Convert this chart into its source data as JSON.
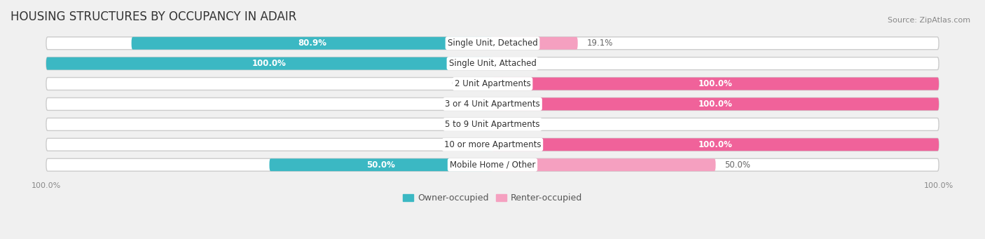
{
  "title": "HOUSING STRUCTURES BY OCCUPANCY IN ADAIR",
  "source": "Source: ZipAtlas.com",
  "categories": [
    "Single Unit, Detached",
    "Single Unit, Attached",
    "2 Unit Apartments",
    "3 or 4 Unit Apartments",
    "5 to 9 Unit Apartments",
    "10 or more Apartments",
    "Mobile Home / Other"
  ],
  "owner_pct": [
    80.9,
    100.0,
    0.0,
    0.0,
    0.0,
    0.0,
    50.0
  ],
  "renter_pct": [
    19.1,
    0.0,
    100.0,
    100.0,
    0.0,
    100.0,
    50.0
  ],
  "owner_color": "#3BB8C3",
  "renter_color_full": "#F0629A",
  "renter_color_partial": "#F5A0C0",
  "owner_label": "Owner-occupied",
  "renter_label": "Renter-occupied",
  "background_color": "#f0f0f0",
  "bar_bg_color": "#e0e0e8",
  "bar_height": 0.62,
  "title_fontsize": 12,
  "label_fontsize": 8.5,
  "source_fontsize": 8,
  "legend_fontsize": 9,
  "axis_label_fontsize": 8,
  "figsize": [
    14.06,
    3.41
  ]
}
